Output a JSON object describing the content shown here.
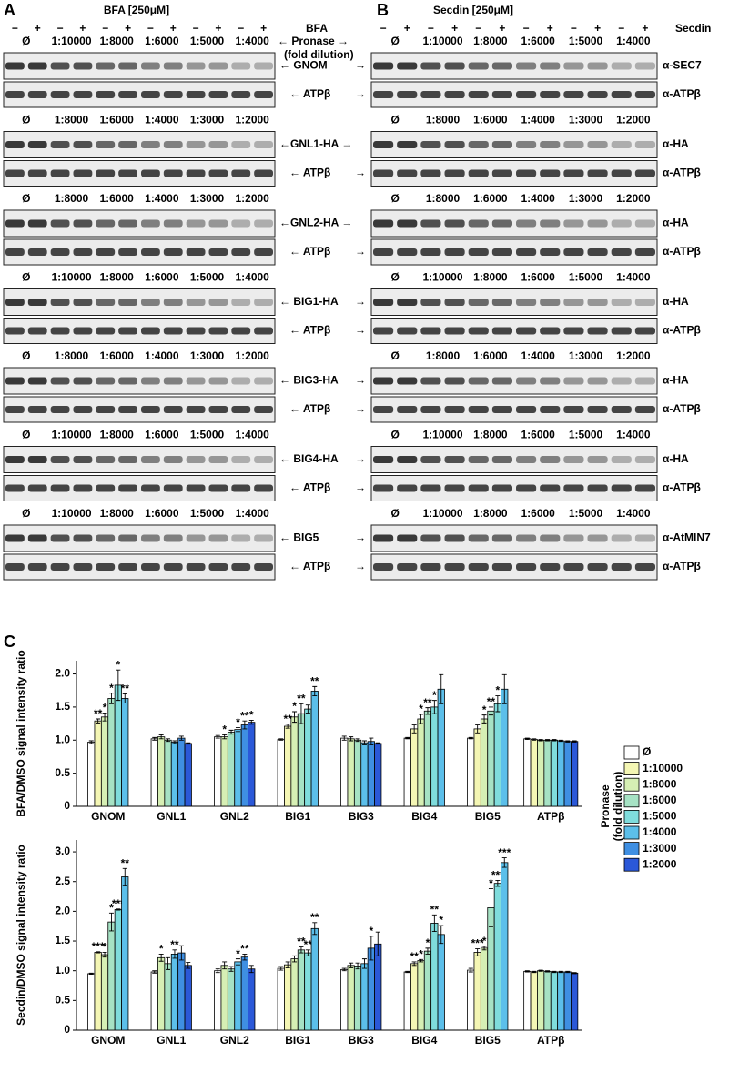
{
  "panel_a": {
    "letter": "A",
    "title": "BFA [250μM]",
    "treatment": "BFA",
    "signs": [
      "−",
      "+"
    ],
    "pronase": "← Pronase →",
    "fold": "(fold dilution)",
    "rows": [
      {
        "dilutions": [
          "Ø",
          "1:10000",
          "1:8000",
          "1:6000",
          "1:5000",
          "1:4000"
        ],
        "target": "← GNOM",
        "loading": "← ATPβ"
      },
      {
        "dilutions": [
          "Ø",
          "1:8000",
          "1:6000",
          "1:4000",
          "1:3000",
          "1:2000"
        ],
        "target": "←GNL1-HA →",
        "loading": "← ATPβ"
      },
      {
        "dilutions": [
          "Ø",
          "1:8000",
          "1:6000",
          "1:4000",
          "1:3000",
          "1:2000"
        ],
        "target": "←GNL2-HA →",
        "loading": "← ATPβ"
      },
      {
        "dilutions": [
          "Ø",
          "1:10000",
          "1:8000",
          "1:6000",
          "1:5000",
          "1:4000"
        ],
        "target": "← BIG1-HA",
        "loading": "← ATPβ"
      },
      {
        "dilutions": [
          "Ø",
          "1:8000",
          "1:6000",
          "1:4000",
          "1:3000",
          "1:2000"
        ],
        "target": "← BIG3-HA",
        "loading": "← ATPβ"
      },
      {
        "dilutions": [
          "Ø",
          "1:10000",
          "1:8000",
          "1:6000",
          "1:5000",
          "1:4000"
        ],
        "target": "← BIG4-HA",
        "loading": "← ATPβ"
      },
      {
        "dilutions": [
          "Ø",
          "1:10000",
          "1:8000",
          "1:6000",
          "1:5000",
          "1:4000"
        ],
        "target": "← BIG5",
        "loading": "← ATPβ"
      }
    ]
  },
  "panel_b": {
    "letter": "B",
    "title": "Secdin [250μM]",
    "treatment": "Secdin",
    "signs": [
      "−",
      "+"
    ],
    "rows": [
      {
        "dilutions": [
          "Ø",
          "1:10000",
          "1:8000",
          "1:6000",
          "1:5000",
          "1:4000"
        ],
        "target_arrow": "→",
        "target": "α-SEC7",
        "loading_arrow": "→",
        "loading": "α-ATPβ"
      },
      {
        "dilutions": [
          "Ø",
          "1:8000",
          "1:6000",
          "1:4000",
          "1:3000",
          "1:2000"
        ],
        "target": "α-HA",
        "loading_arrow": "→",
        "loading": "α-ATPβ"
      },
      {
        "dilutions": [
          "Ø",
          "1:8000",
          "1:6000",
          "1:4000",
          "1:3000",
          "1:2000"
        ],
        "target": "α-HA",
        "loading_arrow": "→",
        "loading": "α-ATPβ"
      },
      {
        "dilutions": [
          "Ø",
          "1:10000",
          "1:8000",
          "1:6000",
          "1:5000",
          "1:4000"
        ],
        "target_arrow": "→",
        "target": "α-HA",
        "loading_arrow": "→",
        "loading": "α-ATPβ"
      },
      {
        "dilutions": [
          "Ø",
          "1:8000",
          "1:6000",
          "1:4000",
          "1:3000",
          "1:2000"
        ],
        "target_arrow": "→",
        "target": "α-HA",
        "loading_arrow": "→",
        "loading": "α-ATPβ"
      },
      {
        "dilutions": [
          "Ø",
          "1:10000",
          "1:8000",
          "1:6000",
          "1:5000",
          "1:4000"
        ],
        "target_arrow": "→",
        "target": "α-HA",
        "loading_arrow": "→",
        "loading": "α-ATPβ"
      },
      {
        "dilutions": [
          "Ø",
          "1:10000",
          "1:8000",
          "1:6000",
          "1:5000",
          "1:4000"
        ],
        "target_arrow": "→",
        "target": "α-AtMIN7",
        "loading_arrow": "→",
        "loading": "α-ATPβ"
      }
    ]
  },
  "panel_c": {
    "letter": "C",
    "legend_title": [
      "Pronase",
      "(fold dilution)"
    ]
  },
  "chart_data": [
    {
      "type": "bar",
      "y_label": "BFA/DMSO signal intensity ratio",
      "categories": [
        "GNOM",
        "GNL1",
        "GNL2",
        "BIG1",
        "BIG3",
        "BIG4",
        "BIG5",
        "ATPβ"
      ],
      "ylim": [
        0,
        2.2
      ],
      "yticks": [
        0,
        0.5,
        {
          "value": 1,
          "label": "1.0"
        },
        1.5,
        {
          "value": 2,
          "label": "2.0"
        }
      ],
      "series": [
        {
          "name": "Ø",
          "color": "#ffffff",
          "values": [
            0.97,
            1.02,
            1.05,
            1.01,
            1.03,
            1.03,
            1.03,
            1.02
          ],
          "errors": [
            0.02,
            0.02,
            0.02,
            0.01,
            0.03,
            0.01,
            0.01,
            0.01
          ],
          "significance": [
            null,
            null,
            null,
            null,
            null,
            null,
            null,
            null
          ]
        },
        {
          "name": "1:10000",
          "color": "#f4f6b4",
          "values": [
            1.29,
            null,
            null,
            1.21,
            null,
            1.17,
            1.17,
            1.01
          ],
          "errors": [
            0.03,
            null,
            null,
            0.03,
            null,
            0.06,
            0.06,
            0.01
          ],
          "significance": [
            "**",
            null,
            null,
            "**",
            null,
            null,
            null,
            null
          ]
        },
        {
          "name": "1:8000",
          "color": "#d6efb4",
          "values": [
            1.35,
            1.05,
            1.05,
            1.35,
            1.02,
            1.32,
            1.32,
            1.0
          ],
          "errors": [
            0.06,
            0.03,
            0.03,
            0.08,
            0.03,
            0.07,
            0.06,
            0.01
          ],
          "significance": [
            "*",
            null,
            "*",
            "*",
            null,
            "*",
            "*",
            null
          ]
        },
        {
          "name": "1:6000",
          "color": "#a6e2c4",
          "values": [
            1.63,
            1.0,
            1.12,
            1.4,
            1.0,
            1.44,
            1.44,
            1.0
          ],
          "errors": [
            0.08,
            0.02,
            0.03,
            0.15,
            0.02,
            0.05,
            0.06,
            0.01
          ],
          "significance": [
            "*",
            null,
            null,
            "**",
            null,
            "**",
            "**",
            null
          ]
        },
        {
          "name": "1:5000",
          "color": "#7fdcdc",
          "values": [
            1.83,
            null,
            null,
            1.47,
            null,
            1.5,
            1.55,
            1.0
          ],
          "errors": [
            0.23,
            null,
            null,
            0.06,
            null,
            0.1,
            0.12,
            0.01
          ],
          "significance": [
            "*",
            null,
            null,
            null,
            null,
            "*",
            "*",
            null
          ]
        },
        {
          "name": "1:4000",
          "color": "#5cbfea",
          "values": [
            1.63,
            0.97,
            1.16,
            1.74,
            0.96,
            1.77,
            1.77,
            0.99
          ],
          "errors": [
            0.07,
            0.02,
            0.03,
            0.07,
            0.03,
            0.22,
            0.22,
            0.01
          ],
          "significance": [
            "**",
            null,
            "*",
            "**",
            null,
            null,
            null,
            null
          ]
        },
        {
          "name": "1:3000",
          "color": "#3f8fe2",
          "values": [
            null,
            1.03,
            1.23,
            null,
            0.98,
            null,
            null,
            0.98
          ],
          "errors": [
            null,
            0.03,
            0.06,
            null,
            0.05,
            null,
            null,
            0.01
          ],
          "significance": [
            null,
            null,
            "**",
            null,
            null,
            null,
            null,
            null
          ]
        },
        {
          "name": "1:2000",
          "color": "#2b58d8",
          "values": [
            null,
            0.95,
            1.27,
            null,
            0.95,
            null,
            null,
            0.98
          ],
          "errors": [
            null,
            0.01,
            0.03,
            null,
            0.01,
            null,
            null,
            0.01
          ],
          "significance": [
            null,
            null,
            "*",
            null,
            null,
            null,
            null,
            null
          ]
        }
      ]
    },
    {
      "type": "bar",
      "y_label": "Secdin/DMSO signal intensity ratio",
      "categories": [
        "GNOM",
        "GNL1",
        "GNL2",
        "BIG1",
        "BIG3",
        "BIG4",
        "BIG5",
        "ATPβ"
      ],
      "ylim": [
        0,
        3.2
      ],
      "yticks": [
        0,
        0.5,
        {
          "value": 1,
          "label": "1.0"
        },
        1.5,
        {
          "value": 2,
          "label": "2.0"
        },
        2.5,
        {
          "value": 3,
          "label": "3.0"
        }
      ],
      "series": [
        {
          "name": "Ø",
          "color": "#ffffff",
          "values": [
            0.95,
            0.98,
            1.0,
            1.04,
            1.02,
            0.98,
            1.01,
            0.99
          ],
          "errors": [
            0.01,
            0.02,
            0.03,
            0.03,
            0.02,
            0.01,
            0.03,
            0.01
          ],
          "significance": [
            null,
            null,
            null,
            null,
            null,
            null,
            null,
            null
          ]
        },
        {
          "name": "1:10000",
          "color": "#f4f6b4",
          "values": [
            1.31,
            null,
            null,
            1.1,
            null,
            1.12,
            1.31,
            0.98
          ],
          "errors": [
            0.01,
            null,
            null,
            0.05,
            null,
            0.03,
            0.06,
            0.01
          ],
          "significance": [
            "***",
            null,
            null,
            null,
            null,
            "**",
            "***",
            null
          ]
        },
        {
          "name": "1:8000",
          "color": "#d6efb4",
          "values": [
            1.27,
            1.22,
            1.09,
            1.2,
            1.09,
            1.17,
            1.38,
            1.0
          ],
          "errors": [
            0.04,
            0.06,
            0.06,
            0.05,
            0.04,
            0.02,
            0.03,
            0.01
          ],
          "significance": [
            "*",
            "*",
            null,
            null,
            null,
            "*",
            "*",
            null
          ]
        },
        {
          "name": "1:6000",
          "color": "#a6e2c4",
          "values": [
            1.82,
            1.12,
            1.03,
            1.35,
            1.08,
            1.33,
            2.06,
            0.99
          ],
          "errors": [
            0.15,
            0.1,
            0.04,
            0.05,
            0.05,
            0.05,
            0.32,
            0.01
          ],
          "significance": [
            "*",
            null,
            null,
            "**",
            null,
            "*",
            "*",
            null
          ]
        },
        {
          "name": "1:5000",
          "color": "#7fdcdc",
          "values": [
            2.03,
            null,
            null,
            1.3,
            null,
            1.8,
            2.47,
            0.98
          ],
          "errors": [
            0.01,
            null,
            null,
            0.05,
            null,
            0.14,
            0.05,
            0.01
          ],
          "significance": [
            "***",
            null,
            null,
            "**",
            null,
            "**",
            "***",
            null
          ]
        },
        {
          "name": "1:4000",
          "color": "#5cbfea",
          "values": [
            2.58,
            1.28,
            1.15,
            1.71,
            1.12,
            1.61,
            2.82,
            0.98
          ],
          "errors": [
            0.14,
            0.07,
            0.05,
            0.1,
            0.08,
            0.15,
            0.08,
            0.01
          ],
          "significance": [
            "**",
            "**",
            "*",
            "**",
            null,
            "*",
            "***",
            null
          ]
        },
        {
          "name": "1:3000",
          "color": "#3f8fe2",
          "values": [
            null,
            1.3,
            1.23,
            null,
            1.38,
            null,
            null,
            0.98
          ],
          "errors": [
            null,
            0.12,
            0.05,
            null,
            0.2,
            null,
            null,
            0.01
          ],
          "significance": [
            null,
            null,
            "**",
            null,
            "*",
            null,
            null,
            null
          ]
        },
        {
          "name": "1:2000",
          "color": "#2b58d8",
          "values": [
            null,
            1.09,
            1.03,
            null,
            1.45,
            null,
            null,
            0.96
          ],
          "errors": [
            null,
            0.05,
            0.06,
            null,
            0.2,
            null,
            null,
            0.01
          ],
          "significance": [
            null,
            null,
            null,
            null,
            null,
            null,
            null,
            null
          ]
        }
      ]
    }
  ]
}
